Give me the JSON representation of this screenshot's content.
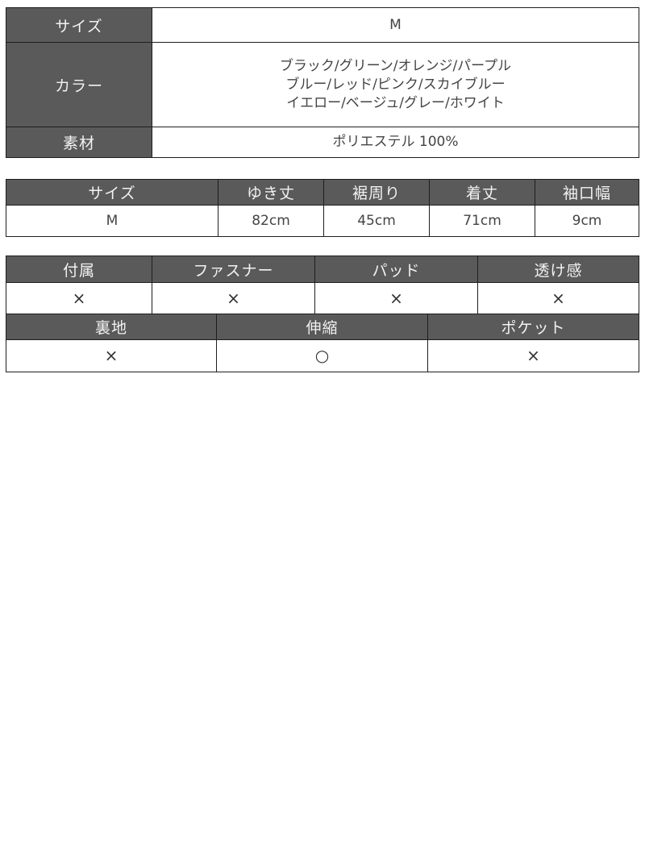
{
  "spec_table": {
    "rows": [
      {
        "label": "サイズ",
        "value_lines": [
          "M"
        ]
      },
      {
        "label": "カラー",
        "value_lines": [
          "ブラック/グリーン/オレンジ/パープル",
          "ブルー/レッド/ピンク/スカイブルー",
          "イエロー/ベージュ/グレー/ホワイト"
        ]
      },
      {
        "label": "素材",
        "value_lines": [
          "ポリエステル 100%"
        ]
      }
    ]
  },
  "size_table": {
    "headers": [
      "サイズ",
      "ゆき丈",
      "裾周り",
      "着丈",
      "袖口幅"
    ],
    "row": [
      "M",
      "82cm",
      "45cm",
      "71cm",
      "9cm"
    ]
  },
  "feature_table_1": {
    "headers": [
      "付属",
      "ファスナー",
      "パッド",
      "透け感"
    ],
    "row": [
      "×",
      "×",
      "×",
      "×"
    ]
  },
  "feature_table_2": {
    "headers": [
      "裏地",
      "伸縮",
      "ポケット"
    ],
    "row": [
      "×",
      "○",
      "×"
    ]
  },
  "colors": {
    "header_bg": "#5a5a5a",
    "border": "#1e1e1e"
  }
}
